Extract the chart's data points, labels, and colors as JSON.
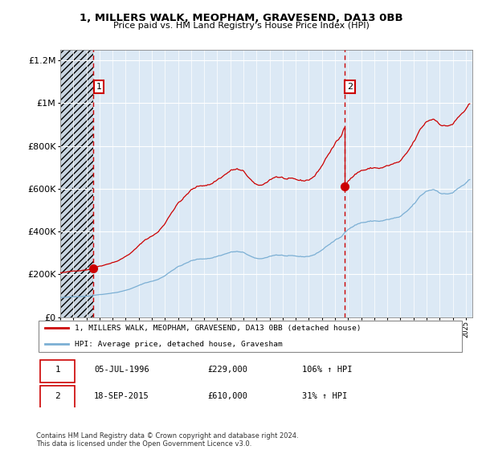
{
  "title1": "1, MILLERS WALK, MEOPHAM, GRAVESEND, DA13 0BB",
  "title2": "Price paid vs. HM Land Registry's House Price Index (HPI)",
  "background_color": "#ffffff",
  "plot_bg_color": "#dce9f5",
  "hatch_color": "#c8d4e0",
  "sale1_year": 1996.54,
  "sale1_value": 229000,
  "sale1_label": "1",
  "sale2_year": 2015.72,
  "sale2_value": 610000,
  "sale2_label": "2",
  "legend_line1": "1, MILLERS WALK, MEOPHAM, GRAVESEND, DA13 0BB (detached house)",
  "legend_line2": "HPI: Average price, detached house, Gravesham",
  "table_row1": [
    "1",
    "05-JUL-1996",
    "£229,000",
    "106% ↑ HPI"
  ],
  "table_row2": [
    "2",
    "18-SEP-2015",
    "£610,000",
    "31% ↑ HPI"
  ],
  "footer": "Contains HM Land Registry data © Crown copyright and database right 2024.\nThis data is licensed under the Open Government Licence v3.0.",
  "hpi_color": "#7bafd4",
  "price_color": "#cc0000",
  "dashed_color": "#cc0000",
  "ylim_max": 1250000,
  "xmin": 1994.0,
  "xmax": 2025.5
}
